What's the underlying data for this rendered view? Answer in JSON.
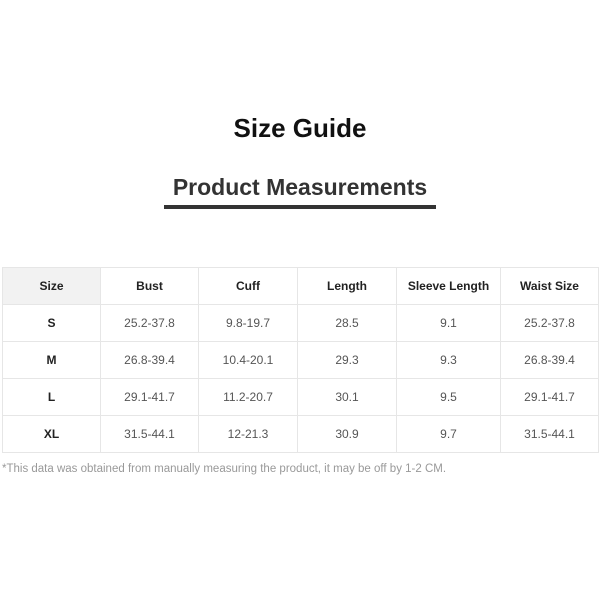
{
  "title": "Size Guide",
  "subtitle": "Product Measurements",
  "table": {
    "headers": [
      "Size",
      "Bust",
      "Cuff",
      "Length",
      "Sleeve Length",
      "Waist Size"
    ],
    "rows": [
      [
        "S",
        "25.2-37.8",
        "9.8-19.7",
        "28.5",
        "9.1",
        "25.2-37.8"
      ],
      [
        "M",
        "26.8-39.4",
        "10.4-20.1",
        "29.3",
        "9.3",
        "26.8-39.4"
      ],
      [
        "L",
        "29.1-41.7",
        "11.2-20.7",
        "30.1",
        "9.5",
        "29.1-41.7"
      ],
      [
        "XL",
        "31.5-44.1",
        "12-21.3",
        "30.9",
        "9.7",
        "31.5-44.1"
      ]
    ]
  },
  "note": "*This data was obtained from manually measuring the product, it may be off by 1-2 CM."
}
